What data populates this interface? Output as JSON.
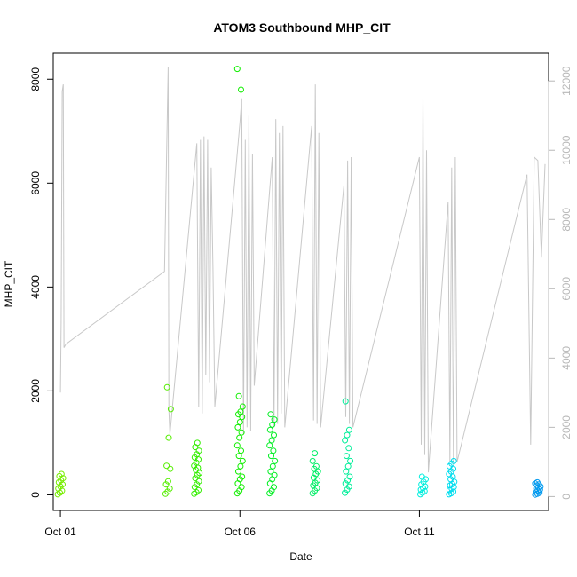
{
  "chart_data": {
    "type": "scatter",
    "title": "ATOM3 Southbound MHP_CIT",
    "xlabel": "Date",
    "ylabel": "MHP_CIT",
    "x_ticks": [
      "Oct 01",
      "Oct 06",
      "Oct 11"
    ],
    "x_tick_days": [
      1,
      6,
      11
    ],
    "xlim": [
      0.8,
      14.6
    ],
    "ylim": [
      -300,
      8500
    ],
    "y_ticks": [
      0,
      2000,
      4000,
      6000,
      8000
    ],
    "y2lim": [
      -400,
      12800
    ],
    "y2_ticks": [
      0,
      2000,
      4000,
      6000,
      8000,
      10000,
      12000
    ],
    "grid": false,
    "colors": {
      "secondary_line": "#c8c8c8",
      "secondary_axis": "#b8b8b8",
      "point_scale": [
        "#77ee00",
        "#00ee22",
        "#00ee99",
        "#00eeee",
        "#0099ee"
      ]
    },
    "point_clusters": [
      {
        "day": 1.0,
        "color": "#77ee00",
        "values": [
          10,
          40,
          80,
          120,
          160,
          200,
          240,
          280,
          320,
          360,
          400
        ]
      },
      {
        "day": 4.0,
        "color": "#55ee00",
        "values": [
          20,
          60,
          120,
          200,
          260,
          500,
          560,
          1100,
          1650,
          2070
        ]
      },
      {
        "day": 4.8,
        "color": "#33ee00",
        "values": [
          20,
          50,
          90,
          150,
          200,
          260,
          320,
          380,
          420,
          480,
          520,
          560,
          620,
          680,
          720,
          780,
          850,
          920,
          1000
        ]
      },
      {
        "day": 6.0,
        "color": "#11ee00",
        "values": [
          30,
          80,
          150,
          220,
          300,
          350,
          450,
          550,
          650,
          750,
          850,
          950,
          1100,
          1200,
          1300,
          1400,
          1500,
          1550,
          1600,
          1700,
          1900,
          7800,
          8200
        ]
      },
      {
        "day": 6.9,
        "color": "#00ee22",
        "values": [
          30,
          80,
          150,
          220,
          300,
          380,
          450,
          550,
          650,
          750,
          850,
          950,
          1050,
          1150,
          1250,
          1350,
          1450,
          1550
        ]
      },
      {
        "day": 8.1,
        "color": "#00ee66",
        "values": [
          30,
          80,
          130,
          180,
          230,
          280,
          330,
          400,
          450,
          500,
          550,
          650,
          800
        ]
      },
      {
        "day": 9.0,
        "color": "#00ee99",
        "values": [
          40,
          100,
          160,
          220,
          280,
          350,
          450,
          550,
          650,
          750,
          900,
          1050,
          1150,
          1250,
          1800
        ]
      },
      {
        "day": 11.1,
        "color": "#00eedd",
        "values": [
          10,
          40,
          70,
          100,
          130,
          160,
          200,
          250,
          300,
          350
        ]
      },
      {
        "day": 11.9,
        "color": "#00ddee",
        "values": [
          10,
          30,
          60,
          90,
          120,
          150,
          180,
          210,
          250,
          300,
          350,
          400,
          450,
          500,
          550,
          600,
          650
        ]
      },
      {
        "day": 14.3,
        "color": "#0099ee",
        "values": [
          5,
          20,
          40,
          60,
          80,
          100,
          120,
          140,
          160,
          180,
          200,
          220,
          240
        ]
      }
    ],
    "secondary_series": {
      "name": "",
      "axis": "right",
      "x": [
        1.0,
        1.02,
        1.05,
        1.08,
        1.1,
        1.15,
        3.9,
        4.0,
        4.02,
        4.05,
        4.8,
        4.85,
        4.9,
        4.95,
        5.0,
        5.05,
        5.1,
        5.15,
        5.2,
        5.25,
        5.3,
        6.0,
        6.05,
        6.1,
        6.15,
        6.2,
        6.25,
        6.3,
        6.35,
        6.4,
        6.9,
        6.95,
        7.0,
        7.05,
        7.1,
        7.15,
        7.2,
        7.25,
        8.0,
        8.05,
        8.1,
        8.15,
        8.2,
        8.25,
        8.9,
        8.95,
        9.0,
        9.05,
        9.1,
        9.15,
        11.0,
        11.05,
        11.1,
        11.15,
        11.2,
        11.25,
        11.8,
        11.85,
        11.9,
        11.95,
        12.0,
        12.05,
        14.0,
        14.1,
        14.2,
        14.3,
        14.4,
        14.5
      ],
      "y": [
        3000,
        5000,
        11700,
        11900,
        4300,
        4400,
        6500,
        12400,
        2500,
        1800,
        10200,
        2600,
        10300,
        2400,
        10400,
        3500,
        10300,
        3300,
        9500,
        6600,
        2600,
        10800,
        11500,
        1800,
        10300,
        2000,
        11000,
        1900,
        9900,
        3200,
        9800,
        2000,
        10900,
        2100,
        10500,
        2400,
        10700,
        2000,
        10700,
        2200,
        11900,
        2100,
        10500,
        2000,
        9000,
        2300,
        9700,
        2100,
        9800,
        2000,
        9800,
        1500,
        11500,
        1200,
        10000,
        700,
        8500,
        1000,
        9500,
        900,
        9800,
        1000,
        9300,
        1500,
        9800,
        9700,
        6900,
        9600
      ]
    }
  }
}
